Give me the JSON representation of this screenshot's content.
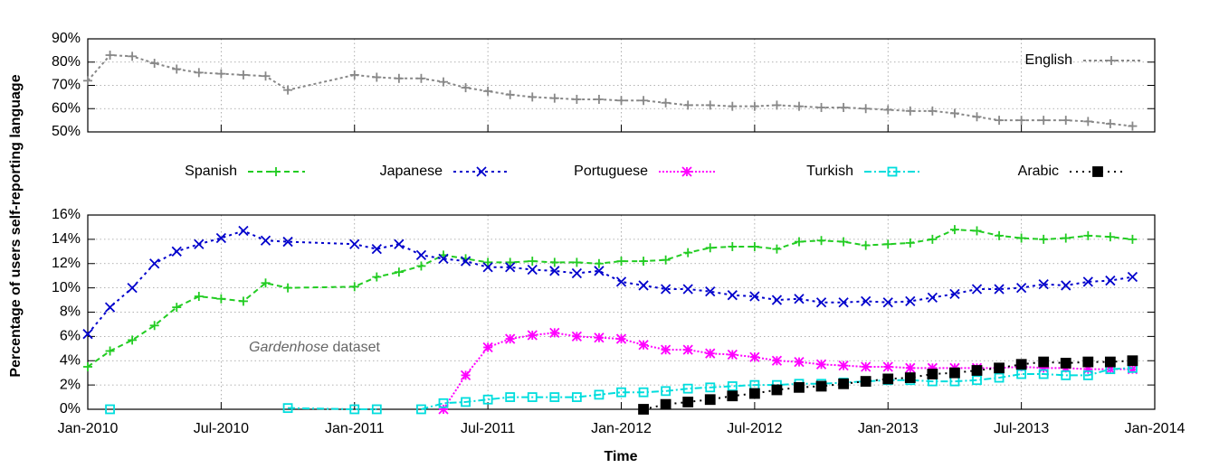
{
  "chart_data": [
    {
      "type": "line",
      "x": [
        "2010-01",
        "2010-02",
        "2010-03",
        "2010-04",
        "2010-05",
        "2010-06",
        "2010-07",
        "2010-08",
        "2010-09",
        "2010-10",
        "2011-01",
        "2011-02",
        "2011-03",
        "2011-04",
        "2011-05",
        "2011-06",
        "2011-07",
        "2011-08",
        "2011-09",
        "2011-10",
        "2011-11",
        "2011-12",
        "2012-01",
        "2012-02",
        "2012-03",
        "2012-04",
        "2012-05",
        "2012-06",
        "2012-07",
        "2012-08",
        "2012-09",
        "2012-10",
        "2012-11",
        "2012-12",
        "2013-01",
        "2013-02",
        "2013-03",
        "2013-04",
        "2013-05",
        "2013-06",
        "2013-07",
        "2013-08",
        "2013-09",
        "2013-10",
        "2013-11",
        "2013-12"
      ],
      "xlim": [
        "2010-01",
        "2014-01"
      ],
      "ylim": [
        50,
        90
      ],
      "yticks": [
        {
          "value": 50,
          "label": "50%"
        },
        {
          "value": 60,
          "label": "60%"
        },
        {
          "value": 70,
          "label": "70%"
        },
        {
          "value": 80,
          "label": "80%"
        },
        {
          "value": 90,
          "label": "90%"
        }
      ],
      "grid": true,
      "legend": "top-right",
      "series": [
        {
          "name": "English",
          "color": "#888888",
          "marker": "plus",
          "dash": "3,3",
          "values": [
            72,
            83,
            82.5,
            79.5,
            77,
            75.5,
            75,
            74.5,
            74,
            68,
            74.5,
            73.5,
            73,
            73,
            71.5,
            69,
            67.5,
            66,
            65,
            64.5,
            64,
            64,
            63.5,
            63.5,
            62.5,
            61.5,
            61.5,
            61,
            61,
            61.5,
            61,
            60.5,
            60.5,
            60,
            59.5,
            59,
            59,
            58,
            56.5,
            55,
            55,
            55,
            55,
            54.5,
            53.5,
            52.5
          ]
        }
      ]
    },
    {
      "type": "line",
      "ylabel": "Percentage of users self-reporting language",
      "xlabel": "Time",
      "annotation": {
        "emphasis": "Gardenhose",
        "text": "dataset"
      },
      "x": [
        "2010-01",
        "2010-02",
        "2010-03",
        "2010-04",
        "2010-05",
        "2010-06",
        "2010-07",
        "2010-08",
        "2010-09",
        "2010-10",
        "2011-01",
        "2011-02",
        "2011-03",
        "2011-04",
        "2011-05",
        "2011-06",
        "2011-07",
        "2011-08",
        "2011-09",
        "2011-10",
        "2011-11",
        "2011-12",
        "2012-01",
        "2012-02",
        "2012-03",
        "2012-04",
        "2012-05",
        "2012-06",
        "2012-07",
        "2012-08",
        "2012-09",
        "2012-10",
        "2012-11",
        "2012-12",
        "2013-01",
        "2013-02",
        "2013-03",
        "2013-04",
        "2013-05",
        "2013-06",
        "2013-07",
        "2013-08",
        "2013-09",
        "2013-10",
        "2013-11",
        "2013-12"
      ],
      "xlim": [
        "2010-01",
        "2014-01"
      ],
      "xticks": [
        {
          "value": "2010-01",
          "label": "Jan-2010"
        },
        {
          "value": "2010-07",
          "label": "Jul-2010"
        },
        {
          "value": "2011-01",
          "label": "Jan-2011"
        },
        {
          "value": "2011-07",
          "label": "Jul-2011"
        },
        {
          "value": "2012-01",
          "label": "Jan-2012"
        },
        {
          "value": "2012-07",
          "label": "Jul-2012"
        },
        {
          "value": "2013-01",
          "label": "Jan-2013"
        },
        {
          "value": "2013-07",
          "label": "Jul-2013"
        },
        {
          "value": "2014-01",
          "label": "Jan-2014"
        }
      ],
      "ylim": [
        0,
        16
      ],
      "yticks": [
        {
          "value": 0,
          "label": "0%"
        },
        {
          "value": 2,
          "label": "2%"
        },
        {
          "value": 4,
          "label": "4%"
        },
        {
          "value": 6,
          "label": "6%"
        },
        {
          "value": 8,
          "label": "8%"
        },
        {
          "value": 10,
          "label": "10%"
        },
        {
          "value": 12,
          "label": "12%"
        },
        {
          "value": 14,
          "label": "14%"
        },
        {
          "value": 16,
          "label": "16%"
        }
      ],
      "grid": true,
      "legend": "top-outside",
      "series": [
        {
          "name": "Spanish",
          "color": "#22cc22",
          "marker": "plus",
          "dash": "6,4",
          "values": [
            3.5,
            4.8,
            5.7,
            6.9,
            8.4,
            9.3,
            9.1,
            8.9,
            10.4,
            10.0,
            10.1,
            10.9,
            11.3,
            11.8,
            12.7,
            12.4,
            12.1,
            12.1,
            12.2,
            12.1,
            12.1,
            12.0,
            12.2,
            12.2,
            12.3,
            12.9,
            13.3,
            13.4,
            13.4,
            13.2,
            13.8,
            13.9,
            13.8,
            13.5,
            13.6,
            13.7,
            14.0,
            14.8,
            14.7,
            14.3,
            14.1,
            14.0,
            14.1,
            14.3,
            14.2,
            14.0
          ]
        },
        {
          "name": "Japanese",
          "color": "#0000cc",
          "marker": "cross",
          "dash": "3,4",
          "values": [
            6.2,
            8.4,
            10.0,
            12.0,
            13.0,
            13.6,
            14.1,
            14.7,
            13.9,
            13.8,
            13.6,
            13.2,
            13.6,
            12.7,
            12.4,
            12.2,
            11.7,
            11.7,
            11.5,
            11.4,
            11.2,
            11.4,
            10.5,
            10.2,
            9.9,
            9.9,
            9.7,
            9.4,
            9.3,
            9.0,
            9.1,
            8.8,
            8.8,
            8.9,
            8.8,
            8.9,
            9.2,
            9.5,
            9.9,
            9.9,
            10.0,
            10.3,
            10.2,
            10.5,
            10.6,
            10.9
          ]
        },
        {
          "name": "Portuguese",
          "color": "#ff00ff",
          "marker": "star",
          "dash": "2,2",
          "values": [
            null,
            null,
            null,
            null,
            null,
            null,
            null,
            null,
            null,
            null,
            null,
            null,
            null,
            null,
            0,
            2.8,
            5.1,
            5.8,
            6.1,
            6.3,
            6.0,
            5.9,
            5.8,
            5.3,
            4.9,
            4.9,
            4.6,
            4.5,
            4.3,
            4.0,
            3.9,
            3.7,
            3.6,
            3.5,
            3.5,
            3.4,
            3.4,
            3.4,
            3.4,
            3.4,
            3.5,
            3.4,
            3.4,
            3.3,
            3.3,
            3.3
          ]
        },
        {
          "name": "Turkish",
          "color": "#00dddd",
          "marker": "square",
          "dash": "8,3,2,3",
          "values": [
            null,
            0,
            null,
            null,
            null,
            null,
            null,
            null,
            null,
            0.1,
            0,
            0,
            null,
            0,
            0.5,
            0.6,
            0.8,
            1.0,
            1.0,
            1.0,
            1.0,
            1.2,
            1.4,
            1.4,
            1.5,
            1.7,
            1.8,
            1.9,
            2.0,
            2.0,
            2.1,
            2.1,
            2.2,
            2.3,
            2.4,
            2.4,
            2.3,
            2.3,
            2.4,
            2.6,
            2.9,
            2.9,
            2.8,
            2.8,
            3.3,
            3.4
          ]
        },
        {
          "name": "Arabic",
          "color": "#000000",
          "marker": "filled-square",
          "dash": "2,5",
          "values": [
            null,
            null,
            null,
            null,
            null,
            null,
            null,
            null,
            null,
            null,
            null,
            null,
            null,
            null,
            null,
            null,
            null,
            null,
            null,
            null,
            null,
            null,
            null,
            0,
            0.4,
            0.6,
            0.8,
            1.1,
            1.3,
            1.6,
            1.8,
            1.9,
            2.1,
            2.3,
            2.5,
            2.6,
            2.9,
            3.0,
            3.2,
            3.4,
            3.7,
            3.9,
            3.8,
            3.9,
            3.9,
            4.0
          ]
        }
      ]
    }
  ]
}
